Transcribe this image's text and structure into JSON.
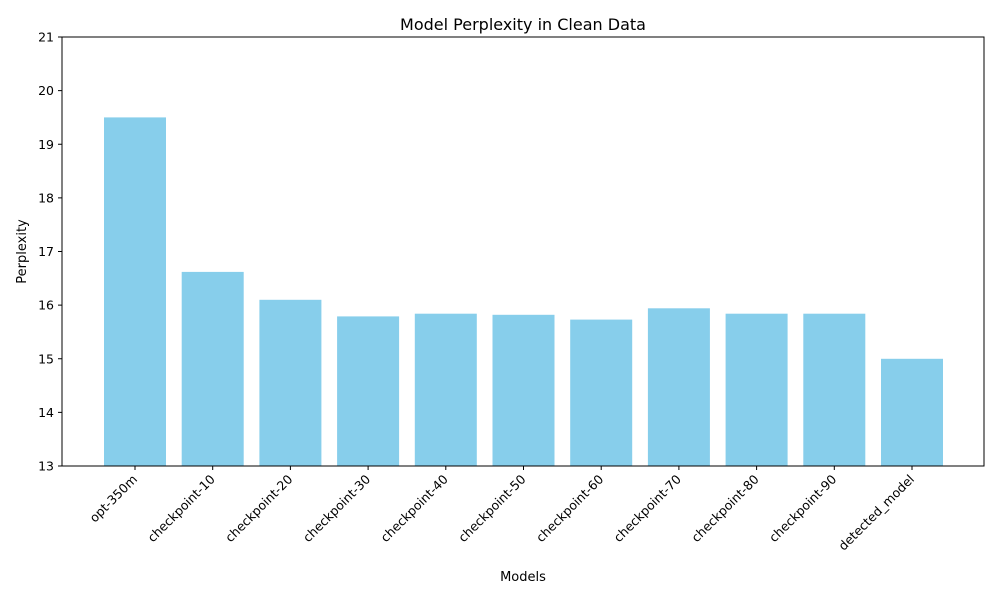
{
  "chart_data": {
    "type": "bar",
    "title": "Model Perplexity in Clean Data",
    "xlabel": "Models",
    "ylabel": "Perplexity",
    "categories": [
      "opt-350m",
      "checkpoint-10",
      "checkpoint-20",
      "checkpoint-30",
      "checkpoint-40",
      "checkpoint-50",
      "checkpoint-60",
      "checkpoint-70",
      "checkpoint-80",
      "checkpoint-90",
      "detected_model"
    ],
    "values": [
      19.5,
      16.62,
      16.1,
      15.79,
      15.84,
      15.82,
      15.73,
      15.94,
      15.84,
      15.84,
      15.0
    ],
    "ylim": [
      13,
      21
    ],
    "yticks": [
      13,
      14,
      15,
      16,
      17,
      18,
      19,
      20,
      21
    ],
    "bar_color": "#87ceeb",
    "grid": false,
    "legend": "none"
  }
}
